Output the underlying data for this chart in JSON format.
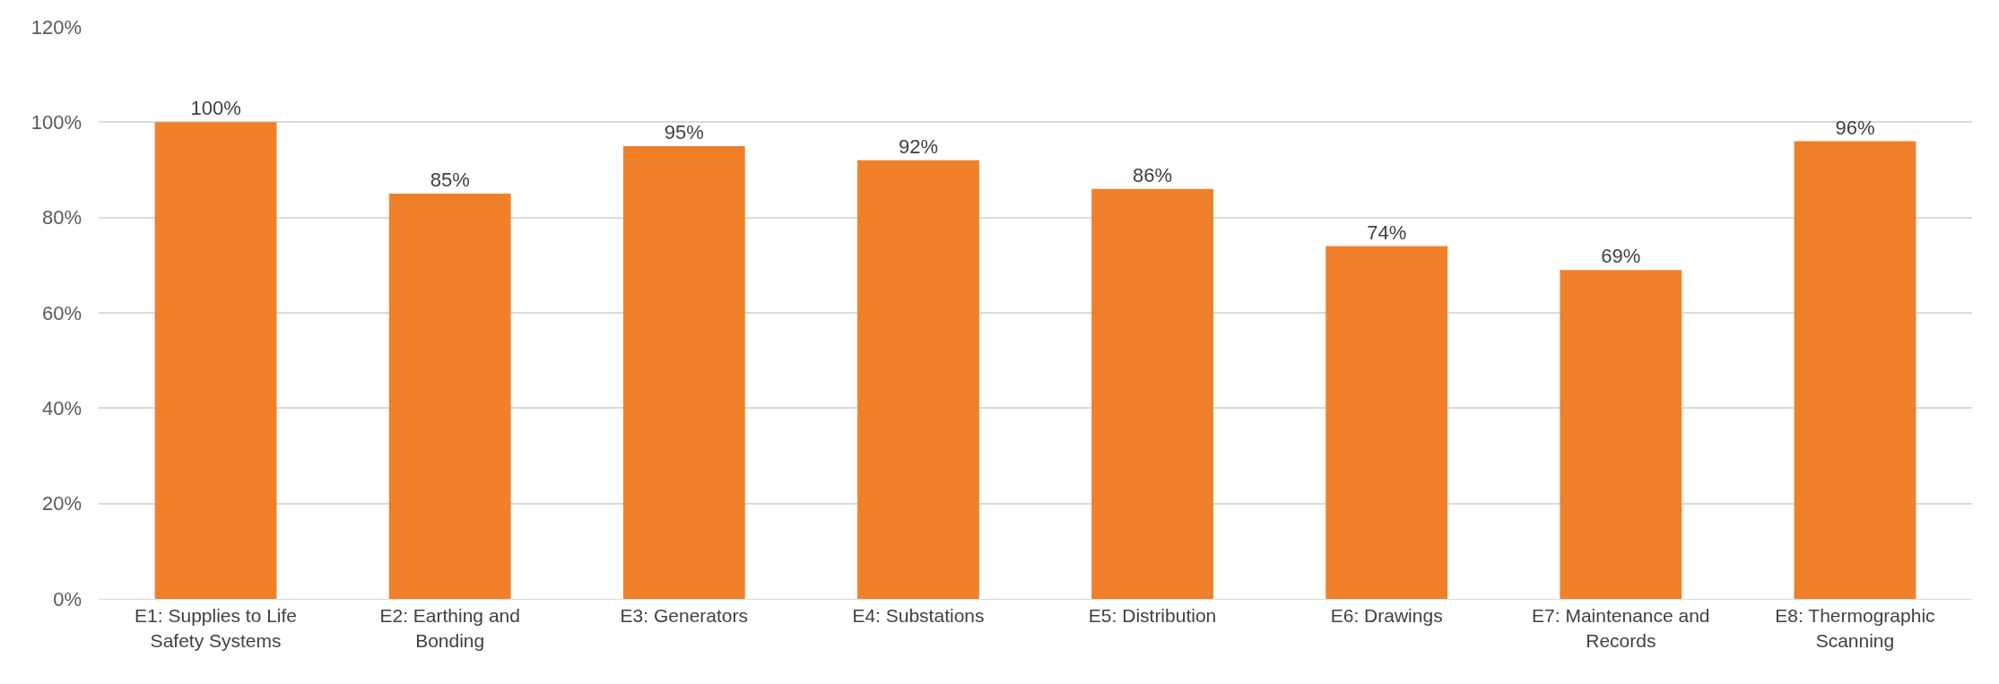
{
  "chart_data": {
    "type": "bar",
    "categories": [
      "E1: Supplies to Life Safety Systems",
      "E2: Earthing and Bonding",
      "E3: Generators",
      "E4: Substations",
      "E5: Distribution",
      "E6: Drawings",
      "E7: Maintenance and Records",
      "E8: Thermographic Scanning"
    ],
    "values": [
      100,
      85,
      95,
      92,
      86,
      74,
      69,
      96
    ],
    "value_labels": [
      "100%",
      "85%",
      "95%",
      "92%",
      "86%",
      "74%",
      "69%",
      "96%"
    ],
    "color": "#f07f2a",
    "ylim": [
      0,
      120
    ],
    "yticks": [
      {
        "value": 0,
        "label": "0%"
      },
      {
        "value": 20,
        "label": "20%"
      },
      {
        "value": 40,
        "label": "40%"
      },
      {
        "value": 60,
        "label": "60%"
      },
      {
        "value": 80,
        "label": "80%"
      },
      {
        "value": 100,
        "label": "100%"
      },
      {
        "value": 120,
        "label": "120%"
      }
    ],
    "grid": "y"
  }
}
